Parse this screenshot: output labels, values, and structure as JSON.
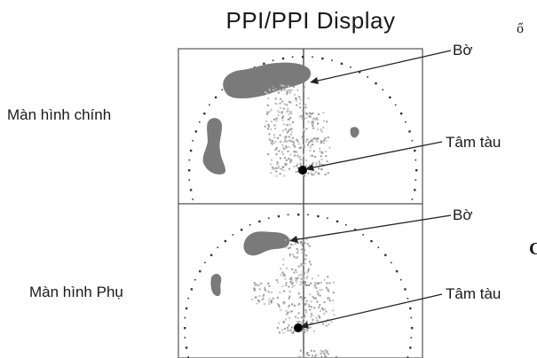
{
  "title": "PPI/PPI Display",
  "screens": {
    "main": {
      "label": "Màn hình chính"
    },
    "sub": {
      "label": "Màn hình Phụ"
    }
  },
  "callouts": {
    "main_shore": "Bờ",
    "main_center": "Tâm tàu",
    "sub_shore": "Bờ",
    "sub_center": "Tâm tàu"
  },
  "cropped_text": {
    "top_right": "ổ",
    "mid_right": "C"
  },
  "colors": {
    "frame": "#555555",
    "land": "#7a7a7a",
    "clutter": "#9a9a9a",
    "ship": "#000000",
    "text": "#1a1a1a"
  }
}
